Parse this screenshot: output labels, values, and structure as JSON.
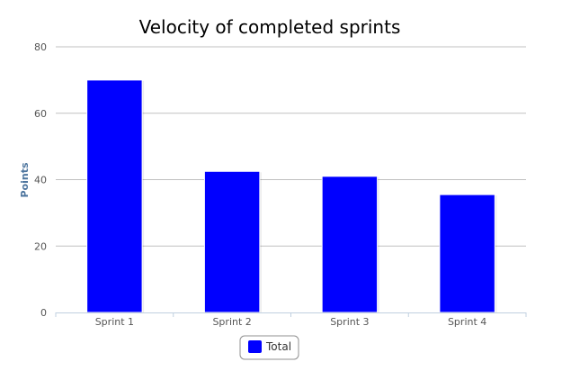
{
  "colors": {
    "bar": "#0000ff",
    "grid": "#c0c0c0",
    "axis_line": "#c0d0e0",
    "title_text": "#000000",
    "tick_text": "#555555",
    "ylabel_text": "#4d759e",
    "legend_border": "#909090"
  },
  "chart_data": {
    "type": "bar",
    "title": "Velocity of completed sprints",
    "xlabel": "",
    "ylabel": "Points",
    "categories": [
      "Sprint 1",
      "Sprint 2",
      "Sprint 3",
      "Sprint 4"
    ],
    "series": [
      {
        "name": "Total",
        "values": [
          70,
          42.5,
          41,
          35.5
        ]
      }
    ],
    "ylim": [
      0,
      80
    ],
    "yticks": [
      0,
      20,
      40,
      60,
      80
    ],
    "grid": true,
    "legend": "bottom-center"
  }
}
